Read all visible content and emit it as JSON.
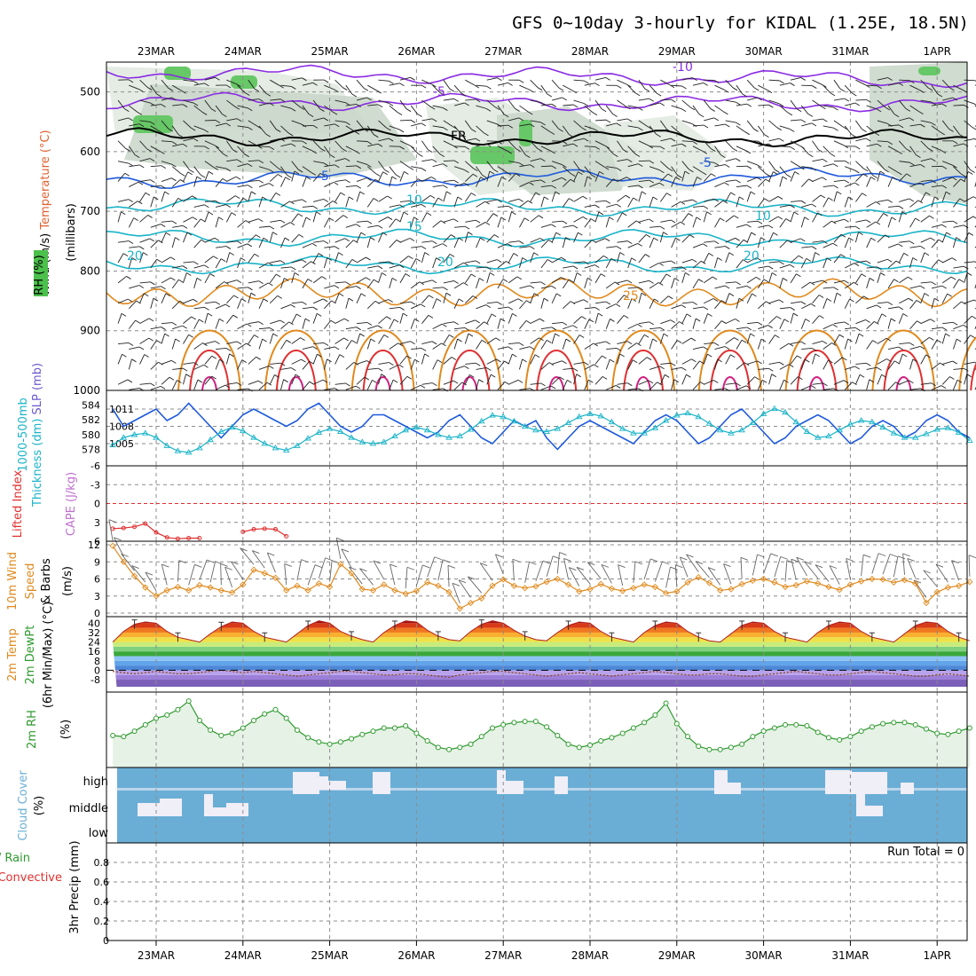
{
  "title": "GFS 0~10day 3-hourly for KIDAL (1.25E, 18.5N)",
  "dates": [
    "23MAR",
    "24MAR",
    "25MAR",
    "26MAR",
    "27MAR",
    "28MAR",
    "29MAR",
    "30MAR",
    "31MAR",
    "1APR"
  ],
  "colors": {
    "grid": "#8c8c8c",
    "purple": "#8a2be2",
    "blue": "#1e5adc",
    "cyan": "#1ab4c8",
    "orange": "#e08a1e",
    "red": "#e03030",
    "green": "#2e9a2e",
    "cloud_sky": "#6aaed6",
    "cloud": "#f0eef6"
  },
  "chart_data": [
    {
      "panel": "upper-air",
      "type": "contour",
      "ylabel_parts": [
        "Wind (m/s)",
        "Temperature (°C)",
        "RH (%)"
      ],
      "ylabel_unit": "(millibars)",
      "y_ticks": [
        500,
        600,
        700,
        800,
        900,
        1000
      ],
      "ylim": [
        1000,
        450
      ],
      "x_days": [
        0,
        9.4
      ],
      "isotherm_labels": [
        {
          "text": "-10",
          "color": "#8a2be2"
        },
        {
          "text": "-5",
          "color": "#8a2be2"
        },
        {
          "text": "FR",
          "color": "#000000"
        },
        {
          "text": "-5",
          "color": "#1e5adc"
        },
        {
          "text": "10",
          "color": "#1ab4c8"
        },
        {
          "text": "15",
          "color": "#1ab4c8"
        },
        {
          "text": "20",
          "color": "#1ab4c8"
        },
        {
          "text": "25",
          "color": "#e08a1e"
        }
      ],
      "isotherms": [
        {
          "level_c": -10,
          "pressure": [
            466,
            480
          ],
          "color": "#8a2be2"
        },
        {
          "level_c": -5,
          "pressure": [
            515,
            520
          ],
          "color": "#8a2be2"
        },
        {
          "level_c": 0,
          "pressure": [
            575,
            578
          ],
          "color": "#000000"
        },
        {
          "level_c": 5,
          "pressure": [
            648,
            640
          ],
          "color": "#1e5adc"
        },
        {
          "level_c": 10,
          "pressure": [
            690,
            696
          ],
          "color": "#1ab4c8"
        },
        {
          "level_c": 15,
          "pressure": [
            744,
            745
          ],
          "color": "#1ab4c8"
        },
        {
          "level_c": 20,
          "pressure": [
            790,
            790
          ],
          "color": "#1ab4c8"
        }
      ]
    },
    {
      "panel": "slp-thickness",
      "type": "line",
      "ylabel": [
        "1000-500mb",
        "Thickness (dm)",
        "SLP (mb)"
      ],
      "left_ticks": [
        578,
        580,
        582,
        584
      ],
      "right_ticks": [
        1005,
        1008,
        1011
      ],
      "series": [
        {
          "name": "SLP (mb)",
          "color": "#1e5adc",
          "values": [
            1011,
            1008,
            1009,
            1010,
            1011,
            1009,
            1010,
            1012,
            1010,
            1008,
            1006,
            1008,
            1010,
            1011,
            1010,
            1009,
            1008,
            1009,
            1011,
            1012,
            1010,
            1008,
            1007,
            1008,
            1010,
            1010,
            1009,
            1008,
            1007,
            1006,
            1007,
            1009,
            1010,
            1008,
            1006,
            1005,
            1007,
            1009,
            1008,
            1009,
            1006,
            1004,
            1006,
            1008,
            1009,
            1008,
            1007,
            1006,
            1005,
            1007,
            1009,
            1010,
            1009,
            1007,
            1005,
            1006,
            1008,
            1010,
            1011,
            1009,
            1007,
            1005,
            1006,
            1008,
            1009,
            1010,
            1009,
            1007,
            1005,
            1006,
            1008,
            1009,
            1008,
            1006,
            1007,
            1009,
            1010,
            1009,
            1007,
            1006
          ]
        },
        {
          "name": "Thickness (dm)",
          "color": "#1ab4c8",
          "values": [
            578.6,
            579.6,
            580.0,
            580.2,
            579.6,
            578.5,
            577.8,
            577.6,
            578.2,
            579.3,
            580.4,
            581.0,
            580.5,
            579.6,
            578.8,
            578.2,
            577.9,
            578.5,
            579.5,
            580.3,
            580.8,
            580.4,
            579.6,
            579.0,
            578.8,
            579.0,
            579.8,
            580.6,
            581.0,
            580.6,
            580.0,
            579.6,
            579.8,
            580.7,
            581.8,
            582.6,
            582.4,
            581.8,
            581.1,
            580.6,
            580.4,
            580.8,
            581.6,
            582.4,
            582.8,
            582.5,
            581.7,
            580.8,
            580.2,
            580.2,
            580.9,
            581.9,
            582.6,
            582.9,
            582.4,
            581.5,
            580.6,
            580.2,
            580.6,
            581.6,
            582.8,
            583.5,
            583.0,
            581.7,
            580.4,
            579.6,
            579.8,
            580.6,
            581.4,
            581.9,
            581.7,
            581.0,
            580.2,
            579.6,
            579.6,
            580.1,
            580.7,
            580.9,
            580.3,
            579.2
          ]
        }
      ]
    },
    {
      "panel": "cape-li",
      "type": "line",
      "ylabel": [
        "Lifted Index",
        "CAPE (J/kg)"
      ],
      "y_ticks": [
        "-6",
        "-3",
        "0",
        "3",
        "6"
      ],
      "series": [
        {
          "name": "Lifted Index",
          "color": "#e03030",
          "x_days": [
            0,
            0.125,
            0.25,
            0.375,
            0.5,
            0.625,
            0.75,
            0.875,
            1.0,
            1.125,
            1.25,
            1.375,
            1.5,
            1.625,
            1.75,
            1.875,
            2.0
          ],
          "values": [
            4.0,
            3.9,
            3.7,
            3.2,
            4.6,
            5.4,
            5.6,
            5.5,
            5.5,
            null,
            null,
            null,
            4.5,
            4.1,
            4.0,
            4.1,
            5.2
          ]
        }
      ]
    },
    {
      "panel": "wind10m",
      "type": "line",
      "ylabel": [
        "10m Wind",
        "Speed",
        "& Barbs",
        "(m/s)"
      ],
      "y_ticks": [
        0,
        3,
        6,
        9,
        12
      ],
      "series": [
        {
          "name": "Speed",
          "color": "#e08a1e",
          "values": [
            11.8,
            9.0,
            6.5,
            4.5,
            3.0,
            4.0,
            4.6,
            4.0,
            4.9,
            4.5,
            4.0,
            3.6,
            5.0,
            7.6,
            7.0,
            6.2,
            4.0,
            4.8,
            4.0,
            5.2,
            4.6,
            8.6,
            7.0,
            4.2,
            4.0,
            5.0,
            4.0,
            3.4,
            3.9,
            5.4,
            4.8,
            3.7,
            0.8,
            1.8,
            2.6,
            4.8,
            5.9,
            4.8,
            4.4,
            4.7,
            5.5,
            6.0,
            5.0,
            3.8,
            4.2,
            5.1,
            4.3,
            3.9,
            4.4,
            5.0,
            4.6,
            3.5,
            3.8,
            5.4,
            6.3,
            5.3,
            4.0,
            4.2,
            5.1,
            5.7,
            6.0,
            5.4,
            4.6,
            4.9,
            5.6,
            5.2,
            4.6,
            4.1,
            5.0,
            5.6,
            6.0,
            5.9,
            5.4,
            5.8,
            5.2,
            1.8,
            3.7,
            4.5,
            4.8,
            5.5
          ]
        }
      ]
    },
    {
      "panel": "temp2m",
      "type": "area",
      "ylabel": [
        "2m Temp",
        "2m DewPt",
        "(6hr Min/Max) (°C)"
      ],
      "y_ticks": [
        -8,
        0,
        8,
        16,
        24,
        32,
        40
      ],
      "series": [
        {
          "name": "2m Temp",
          "color": "#b02020",
          "values": [
            24,
            33,
            39,
            41,
            40,
            33,
            28,
            26,
            24,
            31,
            37,
            41,
            40,
            33,
            28,
            26,
            24,
            31,
            38,
            42,
            40,
            33,
            29,
            26,
            24,
            32,
            38,
            42,
            41,
            34,
            29,
            26,
            25,
            33,
            39,
            42,
            40,
            34,
            29,
            26,
            25,
            32,
            38,
            41,
            40,
            33,
            28,
            26,
            24,
            32,
            38,
            41,
            40,
            33,
            28,
            25,
            24,
            31,
            38,
            41,
            40,
            33,
            28,
            26,
            24,
            32,
            38,
            41,
            40,
            33,
            28,
            26,
            24,
            31,
            38,
            41,
            40,
            33,
            28,
            25
          ]
        },
        {
          "name": "2m DewPt",
          "color": "#8b4513",
          "values": [
            -1,
            -2,
            -3,
            -2,
            -1,
            -2,
            -3,
            -3,
            -2,
            -1,
            0,
            -1,
            -2,
            -1,
            -2,
            -3,
            -4,
            -5,
            -4,
            -3,
            -2,
            -1,
            -1,
            -2,
            -3,
            -4,
            -4,
            -3,
            -3,
            -4,
            -5,
            -6,
            -4,
            -3,
            -2,
            -1,
            -1,
            -2,
            -3,
            -4,
            -5,
            -4,
            -3,
            -2,
            -3,
            -4,
            -5,
            -4,
            -3,
            -2,
            -1,
            -2,
            -3,
            -4,
            -4,
            -3,
            -3,
            -4,
            -5,
            -5,
            -4,
            -3,
            -2,
            -1,
            -2,
            -3,
            -4,
            -4,
            -3,
            -2,
            -1,
            -2,
            -3,
            -4,
            -5,
            -5,
            -4,
            -3,
            -4,
            -5
          ]
        }
      ]
    },
    {
      "panel": "rh2m",
      "type": "area",
      "ylabel": [
        "2m RH",
        "(%)"
      ],
      "series": [
        {
          "name": "2m RH",
          "color": "#2e9a2e",
          "values": [
            28,
            27,
            32,
            38,
            44,
            47,
            52,
            60,
            42,
            33,
            28,
            30,
            35,
            42,
            48,
            52,
            44,
            33,
            26,
            22,
            20,
            22,
            25,
            29,
            32,
            35,
            35,
            37,
            30,
            23,
            17,
            15,
            17,
            20,
            27,
            35,
            38,
            40,
            41,
            41,
            36,
            28,
            20,
            17,
            19,
            23,
            26,
            30,
            35,
            40,
            47,
            58,
            39,
            27,
            18,
            15,
            15,
            17,
            20,
            27,
            32,
            35,
            38,
            38,
            37,
            31,
            26,
            24,
            27,
            32,
            36,
            39,
            40,
            40,
            38,
            34,
            30,
            29,
            32,
            35
          ]
        }
      ]
    },
    {
      "panel": "cloud",
      "type": "heatmap",
      "ylabel": [
        "Cloud Cover",
        "(%)"
      ],
      "levels": [
        "high",
        "middle",
        "low"
      ],
      "note": "cloud fractions per 3-hr step for high / middle layers"
    },
    {
      "panel": "precip",
      "type": "bar",
      "ylabel": [
        "Total / Rain",
        "Convective",
        "3hr Precip (mm)"
      ],
      "y_ticks": [
        "0",
        "0.2",
        "0.4",
        "0.6",
        "0.8"
      ],
      "annotation": "Run Total = 0",
      "values": []
    }
  ]
}
